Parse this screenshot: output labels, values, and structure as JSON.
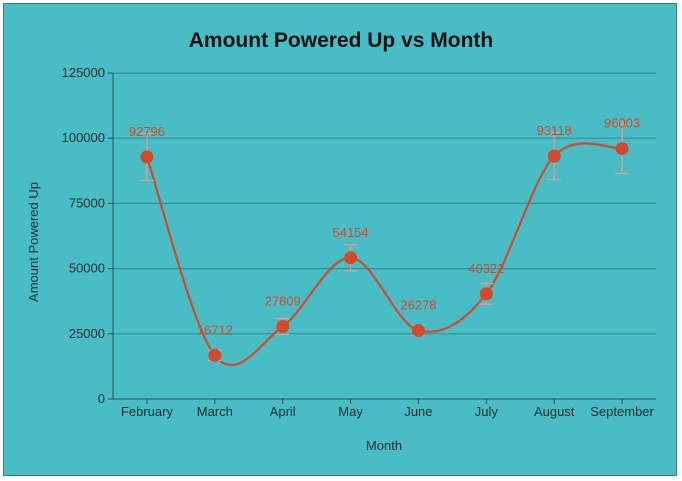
{
  "chart_data": {
    "type": "line",
    "title": "Amount Powered Up vs Month",
    "xlabel": "Month",
    "ylabel": "Amount Powered Up",
    "categories": [
      "February",
      "March",
      "April",
      "May",
      "June",
      "July",
      "August",
      "September"
    ],
    "series": [
      {
        "values": [
          92796,
          16712,
          27809,
          54154,
          26278,
          40322,
          93118,
          96003
        ],
        "error": [
          9000,
          2000,
          3000,
          5000,
          2000,
          4000,
          9000,
          9500
        ]
      }
    ],
    "ylim": [
      0,
      125000
    ],
    "yticks": [
      0,
      25000,
      50000,
      75000,
      100000,
      125000
    ],
    "grid": true,
    "data_labels": true,
    "line_color": "#d24a2b",
    "background_color": "#48bdc6",
    "grid_color": "#3a8f97"
  }
}
